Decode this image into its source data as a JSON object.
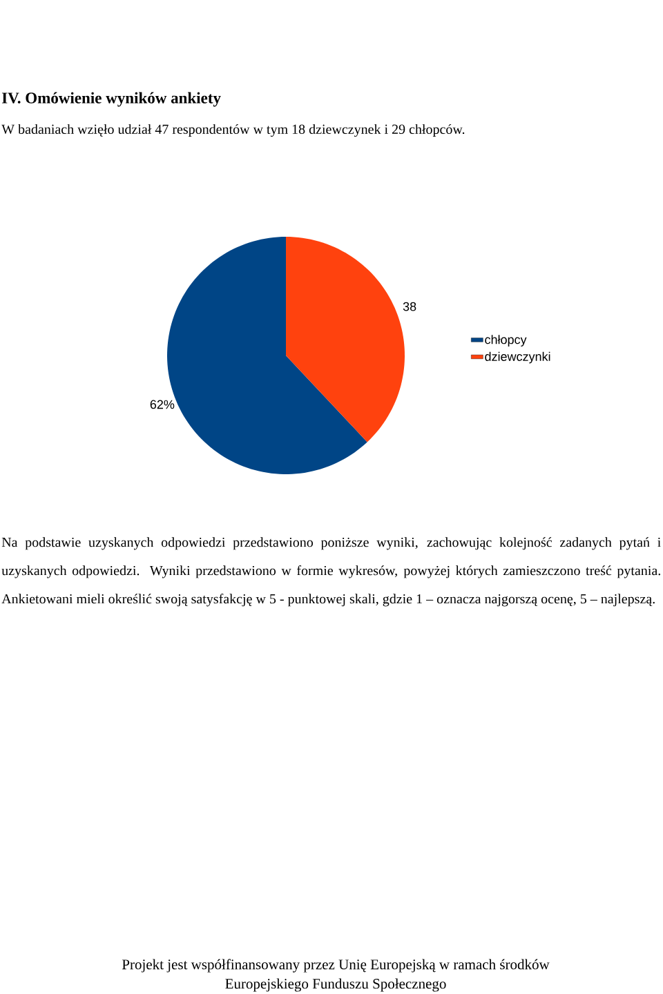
{
  "chart_data": {
    "type": "pie",
    "title": "IV. Omówienie wyników ankiety",
    "subtitle": "W badaniach wzięło udział 47 respondentów w tym 18 dziewczynek i 29 chłopców.",
    "categories": [
      "chłopcy",
      "dziewczynki"
    ],
    "values": [
      62,
      38
    ],
    "colors": [
      "#004586",
      "#ff420e"
    ],
    "value_labels": [
      "62%",
      "38"
    ],
    "legend": "right",
    "annotations": [
      "Na podstawie uzyskanych odpowiedzi przedstawiono poniższe wyniki, zachowując kolejność zadanych pytań i uzyskanych odpowiedzi. Wyniki przedstawiono w formie wykresów, powyżej których zamieszczono treść pytania. Ankietowani mieli określić swoją satysfakcję w 5 - punktowej skali, gdzie 1 – oznacza najgorszą ocenę, 5 – najlepszą.",
      "Projekt jest współfinansowany przez Unię Europejską w ramach środków",
      "Europejskiego Funduszu  Społecznego"
    ]
  }
}
